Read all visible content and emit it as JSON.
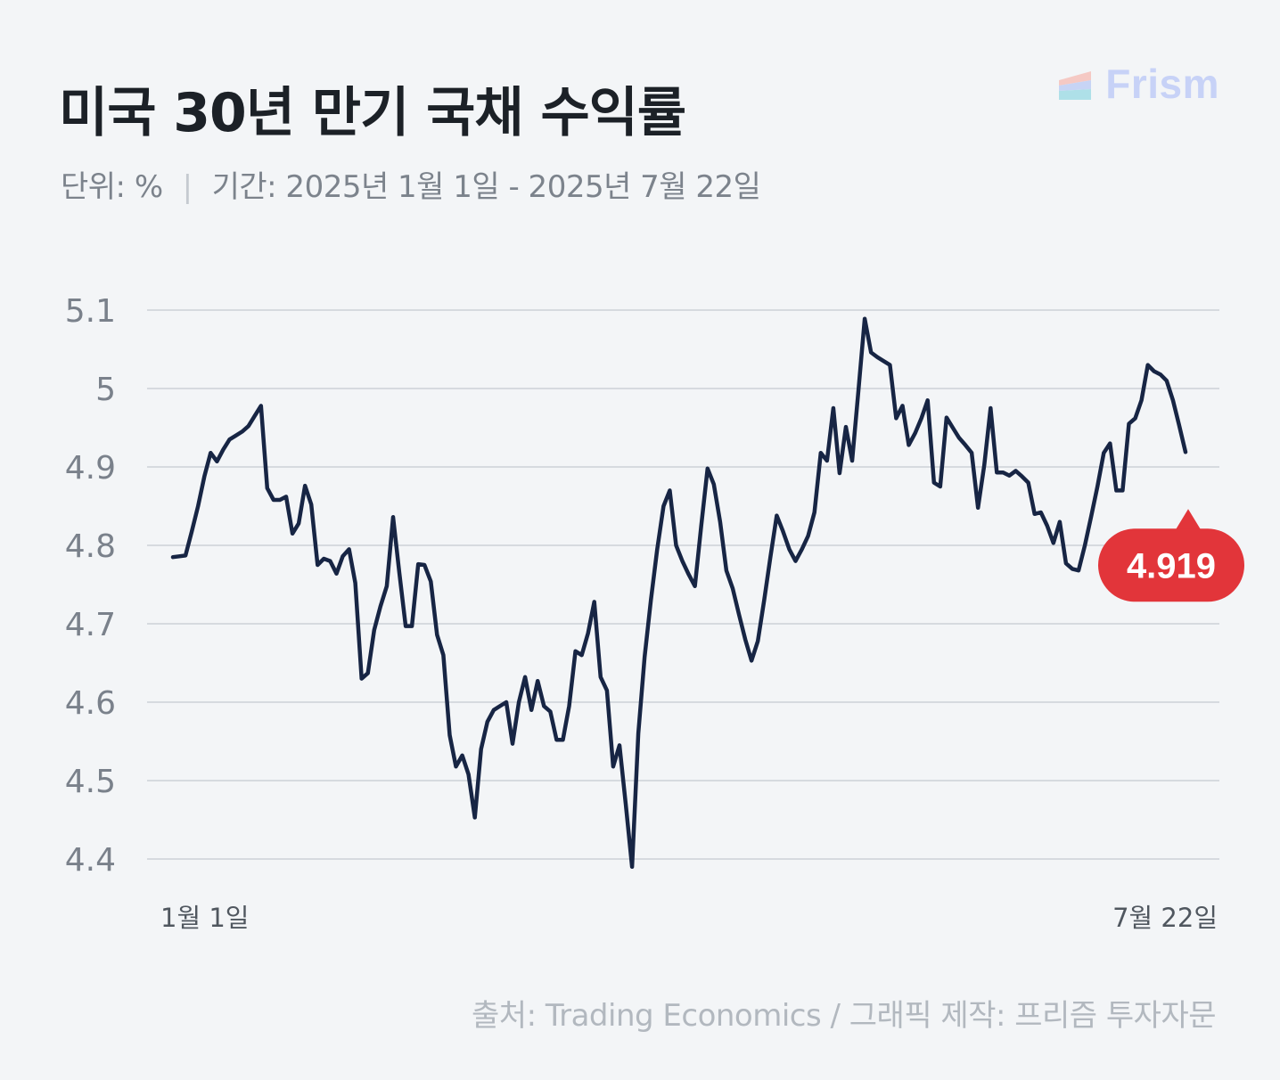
{
  "header": {
    "title": "미국 30년 만기 국채 수익률",
    "unit_label": "단위: %",
    "separator": "|",
    "period_label": "기간: 2025년 1월 1일 - 2025년 7월 22일"
  },
  "brand": {
    "name": "Frism",
    "color": "#c7d2f7"
  },
  "source": {
    "text": "출처: Trading Economics / 그래픽 제작: 프리즘 투자자문"
  },
  "colors": {
    "line": "#172544",
    "grid": "#d6dadf",
    "axis_text": "#7a818b",
    "callout": "#e2353a",
    "callout_text": "#ffffff"
  },
  "chart_data": {
    "type": "line",
    "title": "미국 30년 만기 국채 수익률",
    "xlabel": "",
    "ylabel": "",
    "ylim": [
      4.4,
      5.1
    ],
    "yticks": [
      5.1,
      5,
      4.9,
      4.8,
      4.7,
      4.6,
      4.5,
      4.4
    ],
    "x_tick_labels": [
      "1월 1일",
      "7월 22일"
    ],
    "grid": true,
    "last_value_label": "4.919",
    "series": [
      {
        "values": [
          4.785,
          4.786,
          4.787,
          4.818,
          4.85,
          4.888,
          4.918,
          4.907,
          4.922,
          4.935,
          4.94,
          4.945,
          4.952,
          4.965,
          4.978,
          4.873,
          4.858,
          4.858,
          4.862,
          4.815,
          4.828,
          4.876,
          4.852,
          4.775,
          4.783,
          4.78,
          4.764,
          4.786,
          4.795,
          4.752,
          4.63,
          4.637,
          4.692,
          4.722,
          4.748,
          4.836,
          4.765,
          4.697,
          4.697,
          4.776,
          4.775,
          4.754,
          4.686,
          4.66,
          4.558,
          4.518,
          4.532,
          4.508,
          4.453,
          4.54,
          4.575,
          4.59,
          4.595,
          4.6,
          4.547,
          4.6,
          4.632,
          4.59,
          4.627,
          4.595,
          4.588,
          4.552,
          4.552,
          4.595,
          4.665,
          4.66,
          4.688,
          4.728,
          4.632,
          4.615,
          4.518,
          4.545,
          4.47,
          4.39,
          4.56,
          4.658,
          4.73,
          4.795,
          4.85,
          4.87,
          4.8,
          4.78,
          4.763,
          4.748,
          4.825,
          4.898,
          4.878,
          4.83,
          4.768,
          4.745,
          4.712,
          4.68,
          4.653,
          4.678,
          4.73,
          4.785,
          4.838,
          4.818,
          4.795,
          4.78,
          4.795,
          4.812,
          4.842,
          4.918,
          4.908,
          4.975,
          4.892,
          4.951,
          4.908,
          4.998,
          5.089,
          5.046,
          5.04,
          5.035,
          5.03,
          4.962,
          4.978,
          4.928,
          4.943,
          4.962,
          4.985,
          4.88,
          4.875,
          4.963,
          4.95,
          4.937,
          4.928,
          4.918,
          4.848,
          4.902,
          4.975,
          4.893,
          4.893,
          4.889,
          4.895,
          4.888,
          4.88,
          4.84,
          4.842,
          4.825,
          4.803,
          4.83,
          4.777,
          4.77,
          4.768,
          4.8,
          4.837,
          4.875,
          4.918,
          4.93,
          4.87,
          4.87,
          4.955,
          4.962,
          4.985,
          5.03,
          5.022,
          5.018,
          5.01,
          4.985,
          4.953,
          4.919
        ]
      }
    ]
  }
}
